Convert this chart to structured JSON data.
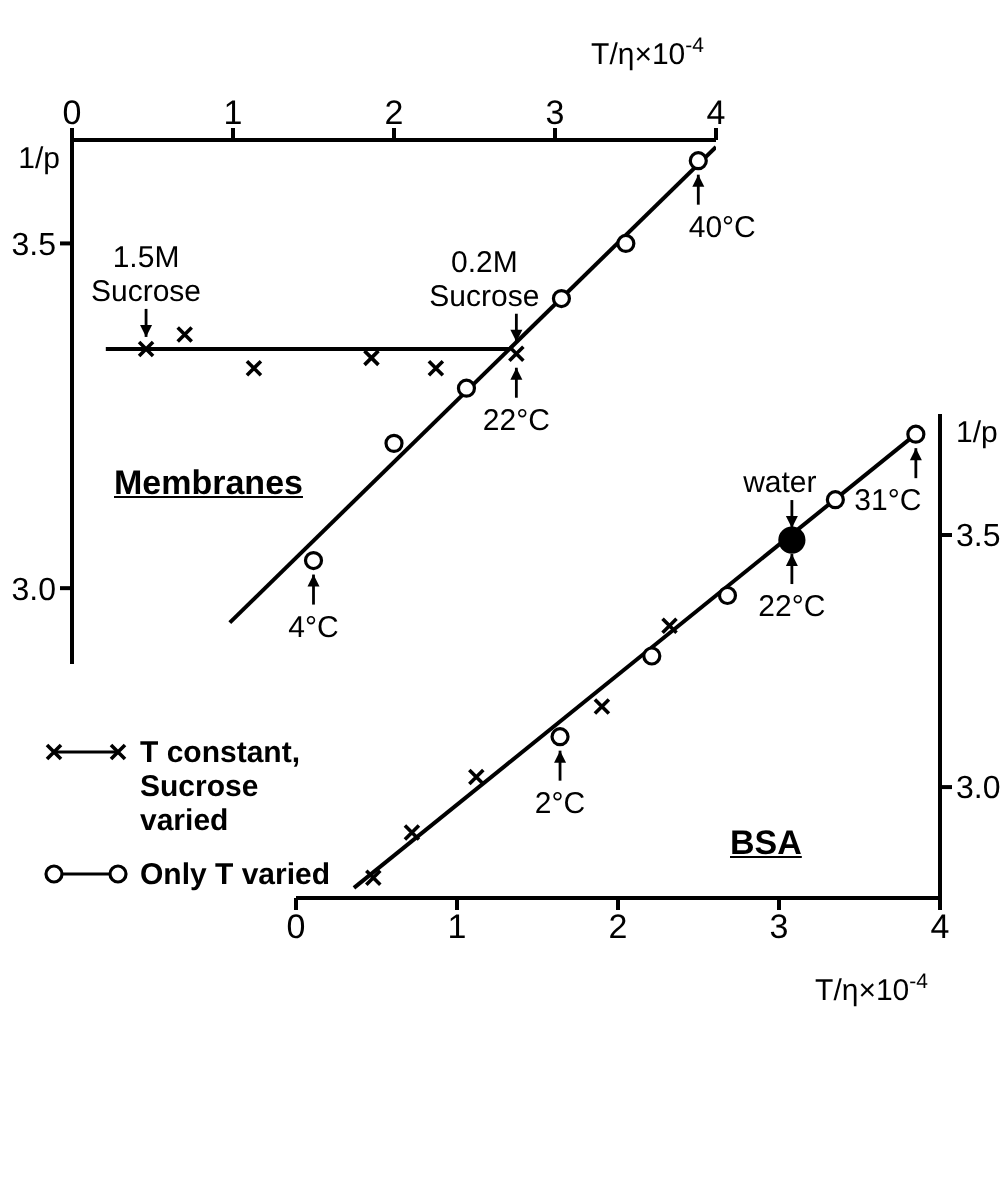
{
  "chart_data": [
    {
      "type": "scatter",
      "xlabel": "T/η×10$^{-4}$",
      "ylabel": "1/p",
      "xlim": [
        0,
        4
      ],
      "xticks": [
        0,
        1,
        2,
        3,
        4
      ],
      "ylim": [
        2.89,
        3.65
      ],
      "yticks": [
        {
          "value": 3,
          "label": "3.0"
        },
        3.5
      ],
      "series": [
        {
          "type": "line",
          "color": "#000000",
          "marker": "none",
          "x": [
            0.21,
            2.72
          ],
          "values": [
            3.347,
            3.347
          ]
        },
        {
          "type": "line",
          "color": "#000000",
          "marker": "none",
          "x": [
            0.98,
            4.0
          ],
          "values": [
            2.95,
            3.64
          ]
        },
        {
          "type": "scatter",
          "color": "#000000",
          "marker": "cross",
          "x": [
            0.46,
            0.7,
            1.13,
            1.86,
            2.26,
            2.76
          ],
          "values": [
            3.347,
            3.368,
            3.319,
            3.334,
            3.319,
            3.34
          ]
        },
        {
          "type": "scatter",
          "color": "#000000",
          "marker": "circle",
          "x": [
            1.5,
            2.0,
            2.45,
            3.04,
            3.44,
            3.89
          ],
          "values": [
            3.04,
            3.21,
            3.29,
            3.42,
            3.5,
            3.62
          ]
        }
      ],
      "annotations": [
        {
          "text": "1.5M Sucrose",
          "x": 0.46,
          "y": 3.347
        },
        {
          "text": "0.2M Sucrose",
          "x": 2.76,
          "y": 3.34
        },
        {
          "text": "22°C",
          "x": 2.76,
          "y": 3.34
        },
        {
          "text": "40°C",
          "x": 3.89,
          "y": 3.62
        },
        {
          "text": "4°C",
          "x": 1.5,
          "y": 3.04
        },
        "Membranes"
      ]
    },
    {
      "type": "scatter",
      "xlabel": "T/η×10$^{-4}$",
      "ylabel": "1/p",
      "xlim": [
        0,
        4
      ],
      "xticks": [
        0,
        1,
        2,
        3,
        4
      ],
      "ylim": [
        2.78,
        3.74
      ],
      "yticks": [
        {
          "value": 3,
          "label": "3.0"
        },
        3.5
      ],
      "legend": "left",
      "series": [
        {
          "type": "line",
          "color": "#000000",
          "marker": "none",
          "x": [
            0.36,
            3.85
          ],
          "values": [
            2.8,
            3.7
          ]
        },
        {
          "type": "scatter",
          "name": "T constant, Sucrose varied",
          "color": "#000000",
          "marker": "cross",
          "x": [
            0.48,
            0.72,
            1.12,
            1.9,
            2.32
          ],
          "values": [
            2.82,
            2.91,
            3.02,
            3.16,
            3.32
          ]
        },
        {
          "type": "scatter",
          "name": "Only T varied",
          "color": "#000000",
          "marker": "circle",
          "x": [
            1.64,
            2.21,
            2.68,
            3.35,
            3.85
          ],
          "values": [
            3.1,
            3.26,
            3.38,
            3.57,
            3.7
          ]
        },
        {
          "type": "scatter",
          "color": "#000000",
          "marker": "circle",
          "x": [
            3.08
          ],
          "values": [
            3.49
          ]
        }
      ],
      "annotations": [
        {
          "text": "water",
          "x": 3.08,
          "y": 3.49
        },
        {
          "text": "22°C",
          "x": 3.08,
          "y": 3.49
        },
        {
          "text": "31°C",
          "x": 3.85,
          "y": 3.7
        },
        {
          "text": "2°C",
          "x": 1.64,
          "y": 3.1
        },
        "BSA"
      ]
    }
  ]
}
